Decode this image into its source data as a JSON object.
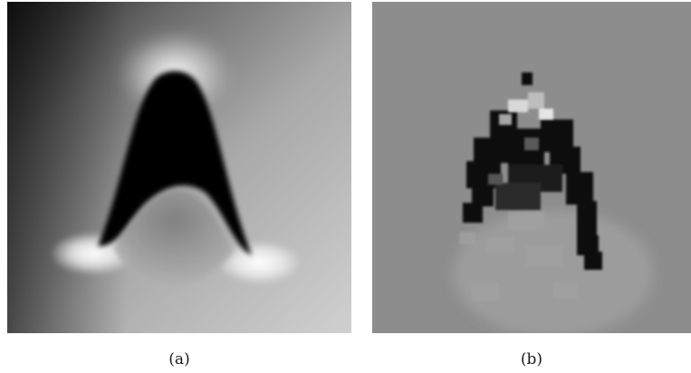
{
  "figure": {
    "panels": [
      {
        "id": "a",
        "caption": "(a)"
      },
      {
        "id": "b",
        "caption": "(b)"
      }
    ]
  }
}
